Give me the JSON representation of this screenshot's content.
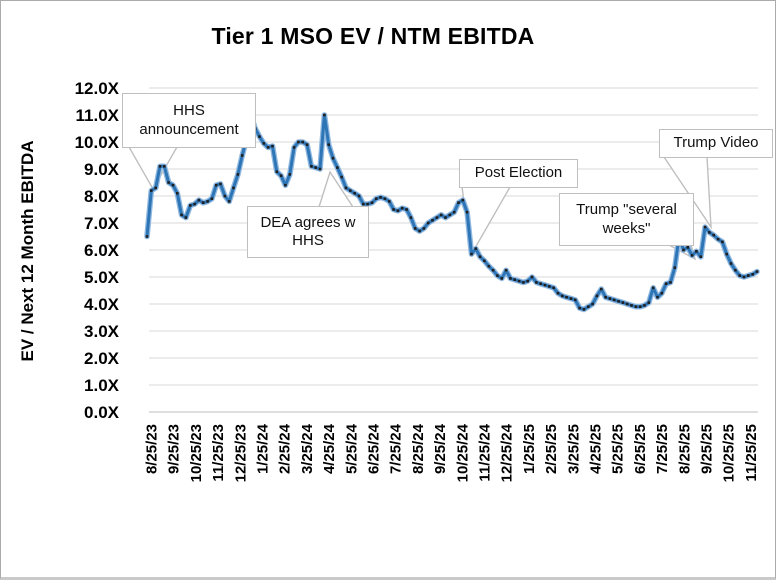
{
  "chart_data": {
    "type": "line",
    "title": "Tier 1 MSO EV / NTM EBITDA",
    "xlabel": "",
    "ylabel": "EV / Next 12 Month EBITDA",
    "ylim": [
      0,
      12
    ],
    "ytick_step": 1,
    "grid": "horizontal-only",
    "legend": "none",
    "y_ticks": [
      "12.0X",
      "11.0X",
      "10.0X",
      "9.0X",
      "8.0X",
      "7.0X",
      "6.0X",
      "5.0X",
      "4.0X",
      "3.0X",
      "2.0X",
      "1.0X",
      "0.0X"
    ],
    "x_ticks": [
      "8/25/23",
      "9/25/23",
      "10/25/23",
      "11/25/23",
      "12/25/23",
      "1/25/24",
      "2/25/24",
      "3/25/24",
      "4/25/24",
      "5/25/24",
      "6/25/24",
      "7/25/24",
      "8/25/24",
      "9/25/24",
      "10/25/24",
      "11/25/24",
      "12/25/24",
      "1/25/25",
      "2/25/25",
      "3/25/25",
      "4/25/25",
      "5/25/25",
      "6/25/25",
      "7/25/25",
      "8/25/25",
      "9/25/25",
      "10/25/25",
      "11/25/25"
    ],
    "series": [
      {
        "name": "Tier 1 MSO EV / NTM EBITDA",
        "values": [
          6.5,
          8.2,
          8.3,
          9.1,
          9.1,
          8.5,
          8.4,
          8.1,
          7.3,
          7.2,
          7.65,
          7.7,
          7.85,
          7.75,
          7.8,
          7.9,
          8.4,
          8.45,
          8.0,
          7.8,
          8.3,
          8.8,
          9.5,
          10.1,
          11.0,
          10.5,
          10.2,
          9.95,
          9.8,
          9.85,
          8.9,
          8.75,
          8.4,
          8.8,
          9.8,
          10.0,
          10.0,
          9.9,
          9.1,
          9.05,
          9.0,
          11.0,
          9.9,
          9.4,
          9.05,
          8.7,
          8.3,
          8.2,
          8.1,
          8.0,
          7.7,
          7.7,
          7.75,
          7.9,
          7.95,
          7.9,
          7.8,
          7.5,
          7.45,
          7.55,
          7.5,
          7.2,
          6.8,
          6.7,
          6.8,
          7.0,
          7.1,
          7.2,
          7.3,
          7.2,
          7.3,
          7.4,
          7.75,
          7.85,
          7.4,
          5.85,
          6.05,
          5.75,
          5.6,
          5.4,
          5.25,
          5.05,
          4.95,
          5.25,
          4.95,
          4.9,
          4.85,
          4.8,
          4.85,
          5.0,
          4.8,
          4.75,
          4.7,
          4.65,
          4.6,
          4.4,
          4.3,
          4.25,
          4.2,
          4.15,
          3.85,
          3.8,
          3.9,
          4.0,
          4.3,
          4.55,
          4.25,
          4.2,
          4.15,
          4.1,
          4.05,
          4.0,
          3.95,
          3.9,
          3.9,
          3.95,
          4.05,
          4.6,
          4.25,
          4.4,
          4.75,
          4.8,
          5.35,
          6.5,
          6.0,
          6.1,
          5.8,
          5.95,
          5.75,
          6.85,
          6.65,
          6.55,
          6.4,
          6.3,
          5.85,
          5.5,
          5.25,
          5.05,
          5.0,
          5.05,
          5.1,
          5.2
        ]
      }
    ],
    "annotations": [
      {
        "id": "hhs",
        "label": "HHS announcement"
      },
      {
        "id": "dea",
        "label": "DEA agrees w HHS"
      },
      {
        "id": "post-election",
        "label": "Post Election"
      },
      {
        "id": "several-weeks",
        "label": "Trump \"several weeks\""
      },
      {
        "id": "trump-video",
        "label": "Trump Video"
      }
    ],
    "colors": {
      "line": "#2E75B6",
      "line_halo": "#8FB8E0",
      "marker": "#1f1f1f",
      "gridline": "#D9D9D9",
      "axis_text": "#000000",
      "callout_border": "#BFBFBF",
      "frame_border": "#ABABAB"
    }
  }
}
